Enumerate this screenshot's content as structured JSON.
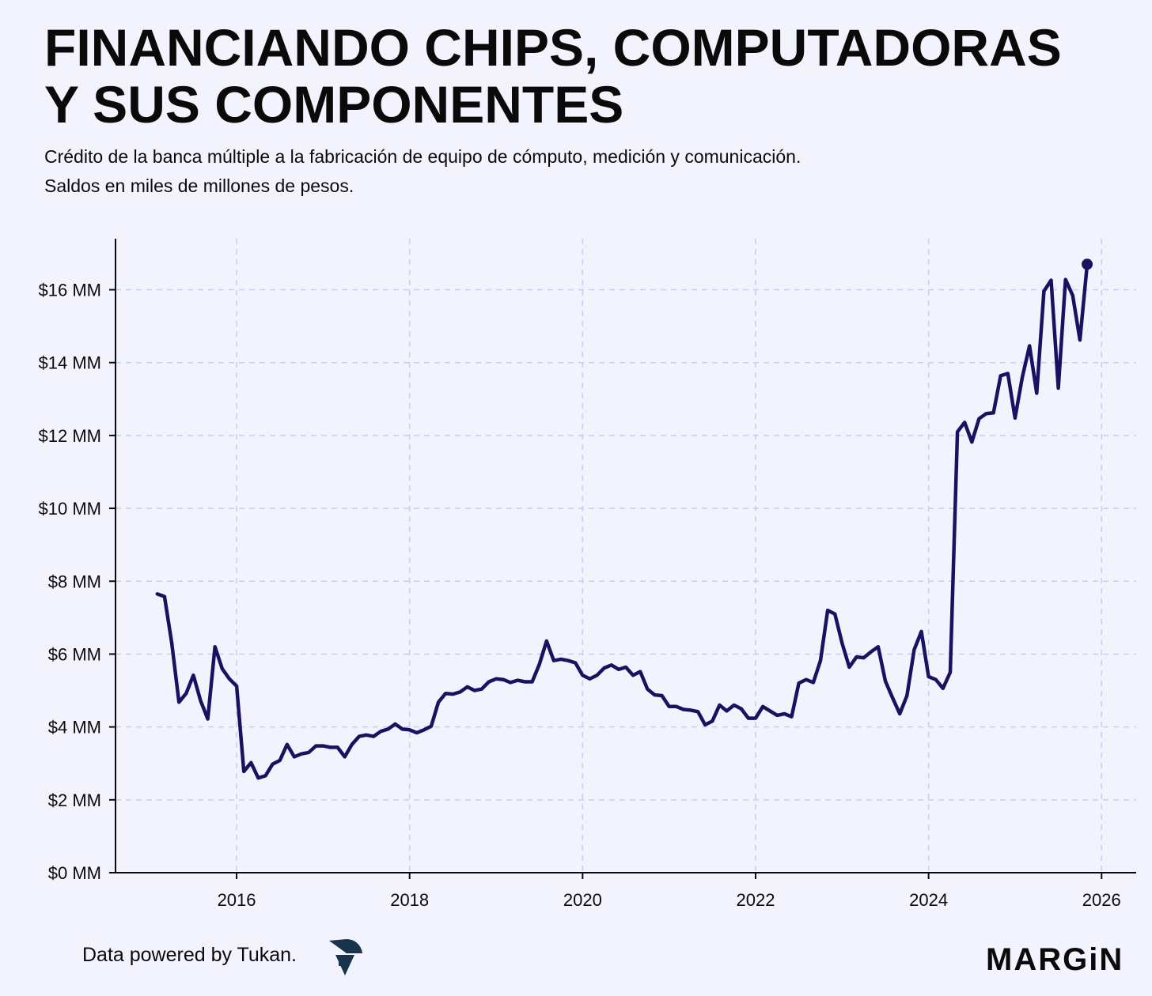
{
  "header": {
    "title_lines": [
      "FINANCIANDO CHIPS, COMPUTADORAS",
      "Y SUS COMPONENTES"
    ],
    "subtitle_lines": [
      "Crédito de la banca múltiple a la fabricación de equipo de cómputo, medición y comunicación.",
      "Saldos en miles de millones de pesos."
    ]
  },
  "footer": {
    "credit": "Data powered by Tukan.",
    "brand": "MARGiN",
    "logo_icon": "tukan-logo-icon"
  },
  "colors": {
    "background": "#f3f3fe",
    "line": "#1b1160",
    "grid": "#c9ccf4",
    "axis": "#0a0a0a",
    "logo": "#17344a"
  },
  "chart_data": {
    "type": "line",
    "title": "FINANCIANDO CHIPS, COMPUTADORAS Y SUS COMPONENTES",
    "subtitle": "Crédito de la banca múltiple a la fabricación de equipo de cómputo, medición y comunicación. Saldos en miles de millones de pesos.",
    "xlabel": "",
    "ylabel": "",
    "xlim": [
      2014.6,
      2026.4
    ],
    "ylim": [
      0,
      17.4
    ],
    "x_ticks": [
      2016,
      2018,
      2020,
      2022,
      2024,
      2026
    ],
    "x_tick_labels": [
      "2016",
      "2018",
      "2020",
      "2022",
      "2024",
      "2026"
    ],
    "y_ticks": [
      0,
      2,
      4,
      6,
      8,
      10,
      12,
      14,
      16
    ],
    "y_tick_labels": [
      "$0 MM",
      "$2 MM",
      "$4 MM",
      "$6 MM",
      "$8 MM",
      "$10 MM",
      "$12 MM",
      "$14 MM",
      "$16 MM"
    ],
    "grid": true,
    "legend": "none",
    "end_marker": true,
    "start": "2015-02",
    "frequency": "monthly",
    "series": [
      {
        "values": [
          7.65,
          7.58,
          6.3,
          4.68,
          4.92,
          5.42,
          4.72,
          4.22,
          6.2,
          5.6,
          5.32,
          5.12,
          2.78,
          3.02,
          2.6,
          2.66,
          2.98,
          3.08,
          3.52,
          3.18,
          3.26,
          3.3,
          3.48,
          3.48,
          3.44,
          3.44,
          3.18,
          3.52,
          3.74,
          3.78,
          3.74,
          3.88,
          3.94,
          4.08,
          3.94,
          3.92,
          3.84,
          3.92,
          4.02,
          4.68,
          4.92,
          4.9,
          4.96,
          5.1,
          5.0,
          5.04,
          5.24,
          5.32,
          5.3,
          5.22,
          5.28,
          5.24,
          5.24,
          5.72,
          6.36,
          5.82,
          5.86,
          5.82,
          5.76,
          5.42,
          5.32,
          5.42,
          5.62,
          5.7,
          5.58,
          5.64,
          5.42,
          5.52,
          5.04,
          4.88,
          4.86,
          4.56,
          4.56,
          4.48,
          4.46,
          4.42,
          4.06,
          4.16,
          4.6,
          4.44,
          4.6,
          4.5,
          4.24,
          4.24,
          4.56,
          4.44,
          4.32,
          4.36,
          4.28,
          5.2,
          5.3,
          5.22,
          5.82,
          7.2,
          7.1,
          6.3,
          5.64,
          5.92,
          5.9,
          6.06,
          6.2,
          5.26,
          4.8,
          4.36,
          4.86,
          6.12,
          6.62,
          5.38,
          5.3,
          5.06,
          5.5,
          12.1,
          12.36,
          11.82,
          12.46,
          12.6,
          12.62,
          13.64,
          13.7,
          12.48,
          13.6,
          14.46,
          13.16,
          15.96,
          16.26,
          13.3,
          16.28,
          15.84,
          14.62,
          16.7
        ]
      }
    ]
  }
}
